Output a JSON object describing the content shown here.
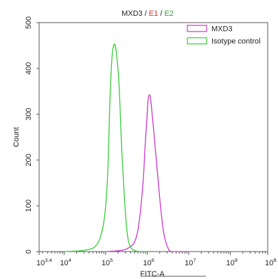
{
  "chart_data": {
    "type": "line",
    "title": "MXD3 / E1 / E2",
    "title_parts": [
      {
        "text": "MXD3",
        "color": "#222222"
      },
      {
        "text": " / ",
        "color": "#222222"
      },
      {
        "text": "E1",
        "color": "#d62728"
      },
      {
        "text": " / ",
        "color": "#222222"
      },
      {
        "text": "E2",
        "color": "#2ca02c"
      }
    ],
    "xlabel": "FITC-A",
    "ylabel": "Count",
    "x_scale": "log",
    "xlim_exponent": [
      3.4,
      8.9
    ],
    "ylim": [
      0,
      500
    ],
    "x_ticks": [
      {
        "base": "10",
        "exp": "3.4",
        "value": 3.4
      },
      {
        "base": "10",
        "exp": "4",
        "value": 4
      },
      {
        "base": "10",
        "exp": "5",
        "value": 5
      },
      {
        "base": "10",
        "exp": "6",
        "value": 6
      },
      {
        "base": "10",
        "exp": "7",
        "value": 7
      },
      {
        "base": "10",
        "exp": "8",
        "value": 8
      },
      {
        "base": "10",
        "exp": "8.9",
        "value": 8.9
      }
    ],
    "y_ticks": [
      "0",
      "100",
      "200",
      "300",
      "400",
      "500"
    ],
    "legend_position": "top-right",
    "grid": false,
    "series": [
      {
        "name": "MXD3",
        "color": "#cc33cc",
        "x_log10": [
          5.0,
          5.2,
          5.4,
          5.55,
          5.7,
          5.8,
          5.9,
          5.95,
          6.0,
          6.02,
          6.05,
          6.08,
          6.12,
          6.18,
          6.25,
          6.32,
          6.4,
          6.5,
          6.6,
          7.0
        ],
        "y": [
          0,
          1,
          3,
          8,
          22,
          60,
          150,
          230,
          300,
          330,
          342,
          335,
          300,
          240,
          170,
          100,
          40,
          8,
          0,
          0
        ]
      },
      {
        "name": "Isotype control",
        "color": "#33cc33",
        "x_log10": [
          4.0,
          4.3,
          4.5,
          4.7,
          4.82,
          4.9,
          4.98,
          5.05,
          5.1,
          5.15,
          5.2,
          5.25,
          5.32,
          5.38,
          5.45,
          5.52,
          5.6,
          5.75,
          6.0
        ],
        "y": [
          0,
          1,
          3,
          8,
          20,
          40,
          80,
          170,
          320,
          420,
          452,
          440,
          370,
          240,
          120,
          40,
          10,
          1,
          0
        ]
      }
    ]
  }
}
